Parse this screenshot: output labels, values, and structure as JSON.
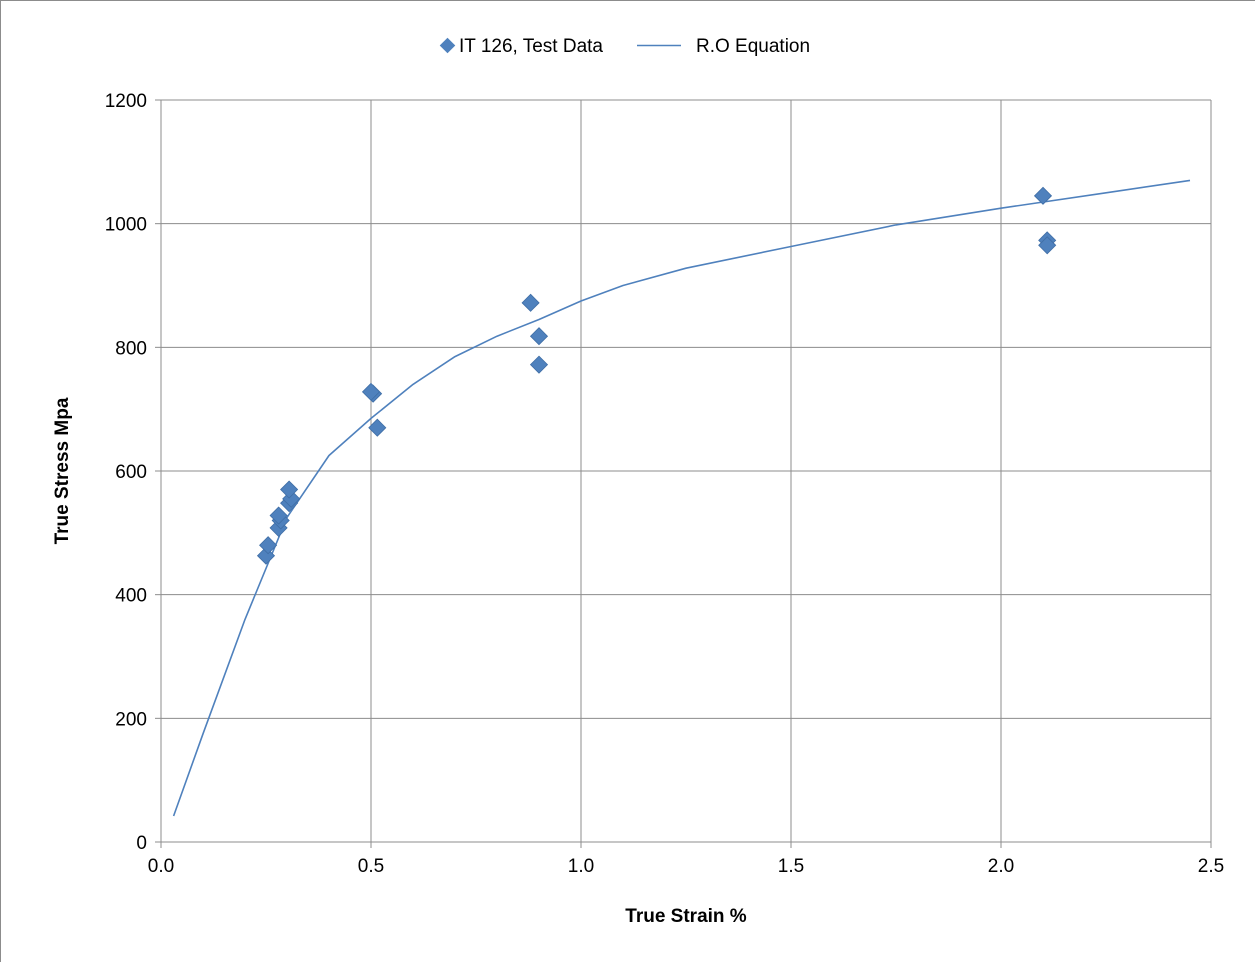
{
  "chart_data": {
    "type": "scatter",
    "xlabel": "True Strain %",
    "ylabel": "True Stress Mpa",
    "xlim": [
      0,
      2.5
    ],
    "ylim": [
      0,
      1200
    ],
    "x_ticks": [
      "0.0",
      "0.5",
      "1.0",
      "1.5",
      "2.0",
      "2.5"
    ],
    "y_ticks": [
      "0",
      "200",
      "400",
      "600",
      "800",
      "1000",
      "1200"
    ],
    "grid": true,
    "legend_position": "top",
    "series": [
      {
        "name": "IT 126, Test Data",
        "kind": "markers",
        "marker": "diamond",
        "color": "#4f81bd",
        "points": [
          {
            "x": 0.25,
            "y": 463
          },
          {
            "x": 0.255,
            "y": 480
          },
          {
            "x": 0.28,
            "y": 508
          },
          {
            "x": 0.285,
            "y": 520
          },
          {
            "x": 0.28,
            "y": 528
          },
          {
            "x": 0.305,
            "y": 548
          },
          {
            "x": 0.31,
            "y": 555
          },
          {
            "x": 0.305,
            "y": 570
          },
          {
            "x": 0.505,
            "y": 725
          },
          {
            "x": 0.5,
            "y": 728
          },
          {
            "x": 0.515,
            "y": 670
          },
          {
            "x": 0.88,
            "y": 872
          },
          {
            "x": 0.9,
            "y": 818
          },
          {
            "x": 0.9,
            "y": 772
          },
          {
            "x": 2.1,
            "y": 1045
          },
          {
            "x": 2.11,
            "y": 973
          },
          {
            "x": 2.11,
            "y": 965
          }
        ]
      },
      {
        "name": "R.O Equation",
        "kind": "line",
        "color": "#4f81bd",
        "points": [
          {
            "x": 0.03,
            "y": 42
          },
          {
            "x": 0.1,
            "y": 175
          },
          {
            "x": 0.2,
            "y": 360
          },
          {
            "x": 0.3,
            "y": 525
          },
          {
            "x": 0.4,
            "y": 625
          },
          {
            "x": 0.5,
            "y": 685
          },
          {
            "x": 0.6,
            "y": 740
          },
          {
            "x": 0.7,
            "y": 785
          },
          {
            "x": 0.8,
            "y": 818
          },
          {
            "x": 0.9,
            "y": 845
          },
          {
            "x": 1.0,
            "y": 875
          },
          {
            "x": 1.1,
            "y": 900
          },
          {
            "x": 1.25,
            "y": 928
          },
          {
            "x": 1.5,
            "y": 963
          },
          {
            "x": 1.75,
            "y": 998
          },
          {
            "x": 2.0,
            "y": 1025
          },
          {
            "x": 2.25,
            "y": 1050
          },
          {
            "x": 2.45,
            "y": 1070
          }
        ]
      }
    ]
  }
}
